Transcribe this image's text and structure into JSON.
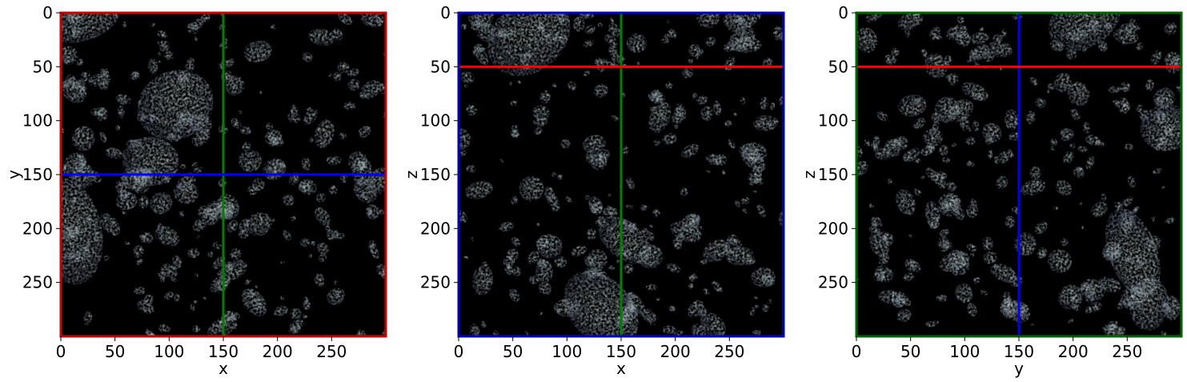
{
  "panels": [
    {
      "id": "xy",
      "xlabel": "x",
      "ylabel": "y",
      "frame_color": "#cc0000",
      "vline_value": 150,
      "vline_color": "#008000",
      "hline_value": 150,
      "hline_color": "#0000ff",
      "xticks": [
        0,
        50,
        100,
        150,
        200,
        250
      ],
      "yticks": [
        0,
        50,
        100,
        150,
        200,
        250
      ],
      "seed": 11
    },
    {
      "id": "xz",
      "xlabel": "x",
      "ylabel": "z",
      "frame_color": "#0000cc",
      "vline_value": 150,
      "vline_color": "#008000",
      "hline_value": 50,
      "hline_color": "#ff0000",
      "xticks": [
        0,
        50,
        100,
        150,
        200,
        250
      ],
      "yticks": [
        0,
        50,
        100,
        150,
        200,
        250
      ],
      "seed": 23
    },
    {
      "id": "yz",
      "xlabel": "y",
      "ylabel": "z",
      "frame_color": "#006400",
      "vline_value": 150,
      "vline_color": "#0000ff",
      "hline_value": 50,
      "hline_color": "#ff0000",
      "xticks": [
        0,
        50,
        100,
        150,
        200,
        250
      ],
      "yticks": [
        0,
        50,
        100,
        150,
        200,
        250
      ],
      "seed": 37
    }
  ],
  "data_range": [
    0,
    300
  ]
}
